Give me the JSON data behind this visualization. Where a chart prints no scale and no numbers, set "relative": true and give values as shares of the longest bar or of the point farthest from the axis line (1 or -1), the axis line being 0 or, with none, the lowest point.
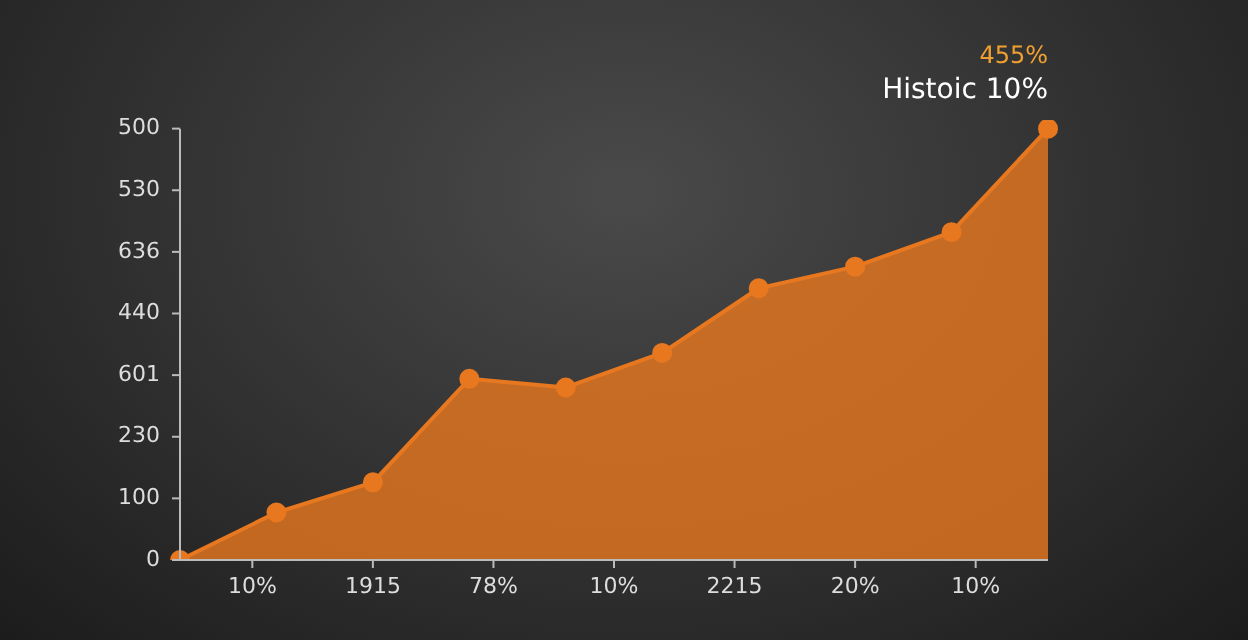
{
  "chart_data": {
    "type": "area",
    "relative": true,
    "categories": [
      null,
      null,
      null,
      null,
      null,
      null,
      null,
      null,
      null,
      null
    ],
    "series": [
      {
        "color": "#e8781f",
        "values": [
          0,
          0.11,
          0.18,
          0.42,
          0.4,
          0.48,
          0.63,
          0.68,
          0.76,
          1
        ]
      }
    ],
    "annotations": [
      "455%",
      "Histoic 10%",
      "500",
      "530",
      "636",
      "440",
      "601",
      "230",
      "100",
      "0",
      "10%",
      "1915",
      "78%",
      "10%",
      "2215",
      "20%",
      "10%"
    ],
    "marker": "circle",
    "legend": false
  }
}
